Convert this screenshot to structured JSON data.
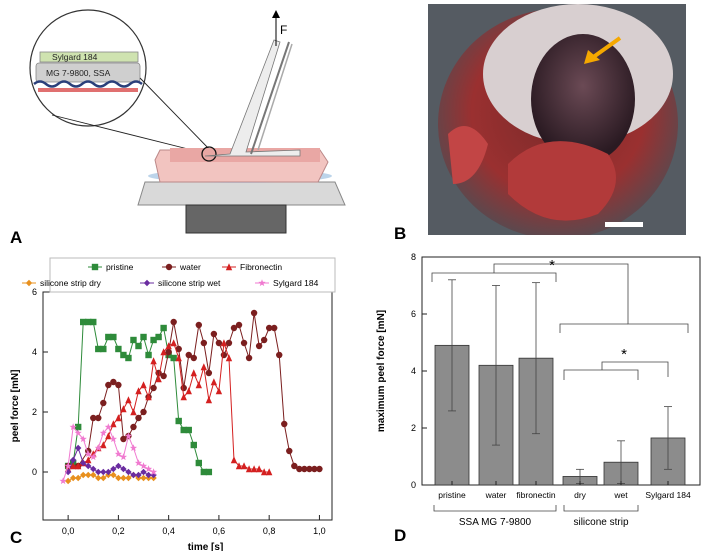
{
  "panel_labels": {
    "a": "A",
    "b": "B",
    "c": "C",
    "d": "D"
  },
  "schematic": {
    "force_label": "F",
    "inset_layer_top": "Sylgard 184",
    "inset_layer_mid": "MG 7-9800, SSA",
    "colors": {
      "tissue": "#f2c4c0",
      "base": "#d9d9d9",
      "dark": "#666666",
      "layer_green": "#cfe3b0",
      "layer_blue": "#2a3f7a"
    }
  },
  "chart_data": [
    {
      "type": "line",
      "title": "",
      "xlabel": "time [s]",
      "ylabel": "peel force [mN]",
      "xlim": [
        -0.1,
        1.05
      ],
      "ylim": [
        -1.6,
        6
      ],
      "x_ticks": [
        "0,0",
        "0,2",
        "0,4",
        "0,6",
        "0,8",
        "1,0"
      ],
      "x_tick_values": [
        0,
        0.2,
        0.4,
        0.6,
        0.8,
        1.0
      ],
      "y_ticks": [
        "0",
        "2",
        "4",
        "6"
      ],
      "y_tick_values": [
        0,
        2,
        4,
        6
      ],
      "legend_position": "top",
      "series": [
        {
          "name": "pristine",
          "color": "#2e8b3a",
          "marker": "square",
          "x": [
            0,
            0.02,
            0.04,
            0.06,
            0.08,
            0.1,
            0.12,
            0.14,
            0.16,
            0.18,
            0.2,
            0.22,
            0.24,
            0.26,
            0.28,
            0.3,
            0.32,
            0.34,
            0.36,
            0.38,
            0.4,
            0.42,
            0.44,
            0.46,
            0.48,
            0.5,
            0.52,
            0.54,
            0.56
          ],
          "y": [
            0.2,
            0.3,
            1.5,
            5.0,
            5.0,
            5.0,
            4.1,
            4.1,
            4.5,
            4.5,
            4.1,
            3.9,
            3.8,
            4.4,
            4.2,
            4.5,
            3.9,
            4.4,
            4.5,
            4.8,
            3.9,
            3.8,
            1.7,
            1.4,
            1.4,
            0.9,
            0.3,
            0.0,
            0.0
          ]
        },
        {
          "name": "water",
          "color": "#7b1f1f",
          "marker": "circle",
          "x": [
            0,
            0.04,
            0.08,
            0.1,
            0.12,
            0.14,
            0.16,
            0.18,
            0.2,
            0.22,
            0.24,
            0.26,
            0.28,
            0.3,
            0.32,
            0.34,
            0.36,
            0.38,
            0.4,
            0.42,
            0.44,
            0.46,
            0.48,
            0.5,
            0.52,
            0.54,
            0.56,
            0.58,
            0.6,
            0.62,
            0.64,
            0.66,
            0.68,
            0.7,
            0.72,
            0.74,
            0.76,
            0.78,
            0.8,
            0.82,
            0.84,
            0.86,
            0.88,
            0.9,
            0.92,
            0.94,
            0.96,
            0.98,
            1.0
          ],
          "y": [
            0.2,
            0.2,
            0.7,
            1.8,
            1.8,
            2.3,
            2.9,
            3.0,
            2.9,
            1.1,
            1.2,
            1.5,
            1.8,
            2.0,
            2.5,
            2.8,
            3.3,
            3.2,
            4.0,
            5.0,
            4.1,
            2.8,
            3.9,
            3.8,
            4.9,
            4.3,
            3.3,
            4.6,
            4.3,
            3.9,
            4.3,
            4.8,
            4.9,
            4.3,
            3.8,
            5.3,
            4.2,
            4.4,
            4.8,
            4.8,
            3.9,
            1.6,
            0.7,
            0.2,
            0.1,
            0.1,
            0.1,
            0.1,
            0.1
          ]
        },
        {
          "name": "Fibronectin",
          "color": "#d42020",
          "marker": "triangle",
          "x": [
            0,
            0.02,
            0.04,
            0.06,
            0.08,
            0.1,
            0.12,
            0.14,
            0.16,
            0.18,
            0.2,
            0.22,
            0.24,
            0.26,
            0.28,
            0.3,
            0.32,
            0.34,
            0.36,
            0.38,
            0.4,
            0.42,
            0.44,
            0.46,
            0.48,
            0.5,
            0.52,
            0.54,
            0.56,
            0.58,
            0.6,
            0.62,
            0.64,
            0.66,
            0.68,
            0.7,
            0.72,
            0.74,
            0.76,
            0.78,
            0.8
          ],
          "y": [
            0.1,
            0.2,
            0.2,
            0.3,
            0.4,
            0.6,
            0.8,
            0.9,
            1.2,
            1.6,
            1.8,
            2.1,
            2.4,
            2.0,
            2.7,
            2.9,
            2.5,
            3.7,
            3.1,
            4.0,
            4.2,
            4.3,
            3.8,
            2.5,
            2.7,
            3.3,
            2.9,
            3.5,
            2.4,
            3.0,
            2.7,
            4.3,
            3.8,
            0.4,
            0.2,
            0.2,
            0.1,
            0.1,
            0.1,
            0.0,
            0.0
          ]
        },
        {
          "name": "silicone strip dry",
          "color": "#e8901e",
          "marker": "diamond",
          "x": [
            0,
            0.02,
            0.04,
            0.06,
            0.08,
            0.1,
            0.12,
            0.14,
            0.16,
            0.18,
            0.2,
            0.22,
            0.24,
            0.26,
            0.28,
            0.3,
            0.32,
            0.34
          ],
          "y": [
            -0.3,
            -0.2,
            -0.2,
            -0.1,
            -0.1,
            -0.1,
            -0.2,
            -0.2,
            -0.1,
            -0.1,
            -0.2,
            -0.2,
            -0.2,
            -0.1,
            -0.2,
            -0.2,
            -0.2,
            -0.2
          ]
        },
        {
          "name": "silicone strip wet",
          "color": "#6a2ca0",
          "marker": "diamond",
          "x": [
            0,
            0.02,
            0.04,
            0.06,
            0.08,
            0.1,
            0.12,
            0.14,
            0.16,
            0.18,
            0.2,
            0.22,
            0.24,
            0.26,
            0.28,
            0.3,
            0.32,
            0.34
          ],
          "y": [
            0.0,
            0.4,
            0.8,
            0.3,
            0.2,
            0.1,
            0.0,
            0.0,
            0.0,
            0.1,
            0.2,
            0.1,
            0.0,
            -0.1,
            -0.1,
            0.0,
            -0.1,
            -0.1
          ]
        },
        {
          "name": "Sylgard 184",
          "color": "#f07ad0",
          "marker": "star",
          "x": [
            -0.02,
            0.0,
            0.02,
            0.04,
            0.06,
            0.08,
            0.1,
            0.12,
            0.14,
            0.16,
            0.18,
            0.2,
            0.22,
            0.24,
            0.26,
            0.28,
            0.3,
            0.32,
            0.34
          ],
          "y": [
            -0.3,
            0.2,
            1.5,
            1.3,
            1.1,
            0.6,
            0.5,
            0.8,
            1.3,
            1.5,
            1.1,
            0.6,
            0.5,
            1.2,
            0.8,
            0.3,
            0.2,
            0.1,
            0.0
          ]
        }
      ]
    },
    {
      "type": "bar",
      "title": "",
      "xlabel": "",
      "ylabel": "maximum peel force [mN]",
      "ylim": [
        0,
        8
      ],
      "y_ticks": [
        "0",
        "2",
        "4",
        "6",
        "8"
      ],
      "y_tick_values": [
        0,
        2,
        4,
        6,
        8
      ],
      "categories": [
        "pristine",
        "water",
        "fibronectin",
        "dry",
        "wet",
        "Sylgard 184"
      ],
      "values": [
        4.9,
        4.2,
        4.45,
        0.3,
        0.8,
        1.65
      ],
      "errors": [
        2.3,
        2.8,
        2.65,
        0.25,
        0.75,
        1.1
      ],
      "bar_color": "#8c8c8c",
      "groups": [
        {
          "label": "SSA MG 7-9800",
          "members": [
            0,
            1,
            2
          ]
        },
        {
          "label": "silicone strip",
          "members": [
            3,
            4
          ]
        }
      ],
      "significance": [
        "*",
        "*"
      ]
    }
  ]
}
